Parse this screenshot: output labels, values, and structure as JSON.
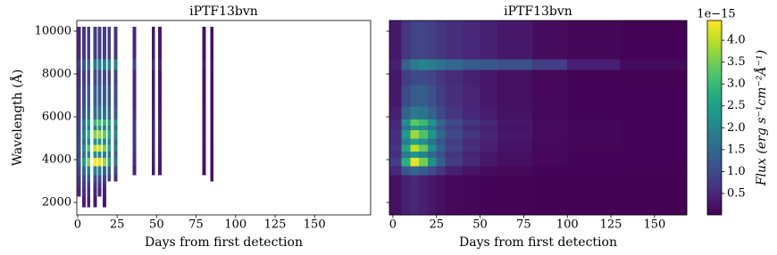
{
  "chart_data": [
    {
      "type": "spectra",
      "title": "iPTF13bvn",
      "x_label": "Days from first detection",
      "y_label": "Wavelength (Å)",
      "xlim": [
        -0.5,
        185.5
      ],
      "ylim": [
        1420,
        10500
      ],
      "xticks": [
        0,
        25,
        50,
        75,
        100,
        125,
        150
      ],
      "yticks": [
        2000,
        4000,
        6000,
        8000,
        10000
      ],
      "colormap": "viridis",
      "clim": [
        0.01,
        4.45
      ],
      "y_edges": [
        1800,
        2300,
        2700,
        3000,
        3300,
        3700,
        4100,
        4400,
        4700,
        5000,
        5400,
        5600,
        5900,
        6500,
        7500,
        8200,
        8700,
        10200
      ],
      "spectra": [
        {
          "x": 1,
          "values": [
            null,
            0.5,
            0.6,
            0.7,
            0.9,
            1.2,
            1.0,
            1.1,
            1.0,
            1.0,
            0.9,
            0.9,
            0.8,
            0.7,
            0.6,
            0.8,
            0.5
          ]
        },
        {
          "x": 4,
          "values": [
            0.4,
            0.6,
            0.8,
            1.0,
            1.5,
            2.5,
            1.6,
            2.2,
            1.6,
            2.0,
            1.5,
            1.8,
            1.2,
            1.0,
            0.8,
            1.2,
            0.7
          ]
        },
        {
          "x": 7,
          "values": [
            0.4,
            0.6,
            0.8,
            1.2,
            1.8,
            3.6,
            2.0,
            3.2,
            2.0,
            2.8,
            1.8,
            2.4,
            1.5,
            1.2,
            0.9,
            1.5,
            0.8
          ]
        },
        {
          "x": 11,
          "values": [
            0.3,
            0.5,
            0.7,
            1.1,
            1.9,
            4.4,
            2.2,
            4.0,
            2.3,
            3.6,
            2.0,
            3.0,
            1.6,
            1.3,
            1.0,
            1.8,
            0.8
          ]
        },
        {
          "x": 14,
          "values": [
            null,
            0.5,
            0.7,
            1.0,
            1.8,
            4.3,
            2.1,
            4.2,
            2.3,
            3.8,
            2.1,
            3.2,
            1.7,
            1.3,
            1.0,
            1.9,
            0.8
          ]
        },
        {
          "x": 17,
          "values": [
            0.3,
            0.4,
            0.6,
            0.9,
            1.5,
            3.8,
            1.9,
            3.6,
            2.1,
            3.4,
            2.0,
            3.0,
            1.6,
            1.3,
            1.0,
            2.0,
            0.8
          ]
        },
        {
          "x": 20,
          "values": [
            null,
            null,
            null,
            0.8,
            1.3,
            2.6,
            1.7,
            2.6,
            1.9,
            2.6,
            1.8,
            2.6,
            1.5,
            1.2,
            0.9,
            2.0,
            0.8
          ]
        },
        {
          "x": 24,
          "values": [
            null,
            null,
            null,
            0.6,
            1.0,
            1.8,
            1.4,
            1.9,
            1.6,
            2.1,
            1.6,
            2.2,
            1.3,
            1.1,
            0.9,
            2.0,
            0.7
          ]
        },
        {
          "x": 36,
          "values": [
            null,
            null,
            null,
            null,
            0.4,
            0.6,
            0.6,
            0.7,
            0.7,
            0.8,
            0.7,
            0.8,
            0.6,
            0.5,
            0.5,
            0.9,
            0.5
          ]
        },
        {
          "x": 48,
          "values": [
            null,
            null,
            null,
            null,
            0.3,
            0.4,
            0.4,
            0.45,
            0.45,
            0.5,
            0.45,
            0.5,
            0.4,
            0.35,
            0.3,
            0.6,
            0.3
          ]
        },
        {
          "x": 52,
          "values": [
            null,
            null,
            null,
            null,
            0.3,
            0.35,
            0.35,
            0.4,
            0.4,
            0.45,
            0.4,
            0.45,
            0.35,
            0.3,
            0.3,
            0.5,
            0.3
          ]
        },
        {
          "x": 80,
          "values": [
            null,
            null,
            null,
            null,
            0.2,
            0.25,
            0.25,
            0.25,
            0.25,
            0.3,
            0.25,
            0.3,
            0.25,
            0.2,
            0.2,
            0.3,
            0.2
          ]
        },
        {
          "x": 85,
          "values": [
            null,
            null,
            null,
            0.15,
            0.2,
            0.2,
            0.2,
            0.2,
            0.2,
            0.25,
            0.2,
            0.25,
            0.2,
            0.18,
            0.18,
            0.25,
            0.18
          ]
        }
      ]
    },
    {
      "type": "heatmap",
      "title": "iPTF13bvn",
      "x_label": "Days from first detection",
      "xlim": [
        -2,
        168.5
      ],
      "ylim": [
        1420,
        10500
      ],
      "xticks": [
        0,
        25,
        50,
        75,
        100,
        125,
        150
      ],
      "yticks": [
        2000,
        4000,
        6000,
        8000,
        10000
      ],
      "ytick_labels": false,
      "colormap": "viridis",
      "clim": [
        0.01,
        4.45
      ],
      "x_edges": [
        -2,
        5,
        10,
        15,
        20,
        25,
        30,
        40,
        50,
        60,
        80,
        100,
        130,
        168.5
      ],
      "y_edges": [
        1420,
        3300,
        3700,
        4100,
        4400,
        4700,
        5000,
        5400,
        5600,
        5900,
        6500,
        7500,
        8200,
        8700,
        10500
      ],
      "values": [
        [
          0.2,
          0.4,
          0.5,
          0.4,
          0.3,
          0.2,
          0.1,
          0.08,
          0.05,
          0.03,
          0.02,
          0.02,
          0.02
        ],
        [
          0.5,
          1.2,
          1.5,
          1.3,
          1.0,
          0.7,
          0.4,
          0.25,
          0.15,
          0.1,
          0.05,
          0.04,
          0.03
        ],
        [
          0.8,
          2.8,
          4.3,
          3.5,
          2.2,
          1.4,
          0.8,
          0.5,
          0.3,
          0.2,
          0.1,
          0.06,
          0.04
        ],
        [
          0.6,
          1.8,
          2.3,
          2.0,
          1.5,
          1.1,
          0.7,
          0.45,
          0.3,
          0.2,
          0.1,
          0.06,
          0.04
        ],
        [
          0.7,
          2.6,
          4.0,
          3.4,
          2.2,
          1.4,
          0.9,
          0.6,
          0.4,
          0.25,
          0.12,
          0.07,
          0.05
        ],
        [
          0.6,
          1.9,
          2.5,
          2.2,
          1.7,
          1.2,
          0.8,
          0.55,
          0.4,
          0.25,
          0.12,
          0.07,
          0.05
        ],
        [
          0.6,
          2.4,
          3.8,
          3.2,
          2.3,
          1.5,
          1.0,
          0.7,
          0.45,
          0.3,
          0.15,
          0.08,
          0.05
        ],
        [
          0.5,
          1.7,
          2.3,
          2.1,
          1.7,
          1.2,
          0.8,
          0.55,
          0.4,
          0.25,
          0.12,
          0.07,
          0.05
        ],
        [
          0.5,
          2.2,
          3.3,
          3.0,
          2.3,
          1.5,
          1.0,
          0.7,
          0.5,
          0.3,
          0.15,
          0.08,
          0.05
        ],
        [
          0.4,
          1.4,
          1.8,
          1.7,
          1.4,
          1.0,
          0.7,
          0.5,
          0.35,
          0.22,
          0.1,
          0.06,
          0.04
        ],
        [
          0.3,
          1.0,
          1.3,
          1.3,
          1.1,
          0.8,
          0.6,
          0.45,
          0.3,
          0.2,
          0.1,
          0.06,
          0.04
        ],
        [
          0.3,
          0.8,
          1.0,
          1.0,
          0.9,
          0.7,
          0.55,
          0.4,
          0.3,
          0.2,
          0.1,
          0.05,
          0.03
        ],
        [
          0.4,
          1.4,
          1.8,
          2.0,
          1.9,
          1.7,
          1.5,
          1.3,
          1.2,
          1.1,
          0.8,
          0.4,
          0.15
        ],
        [
          0.3,
          0.7,
          0.9,
          0.9,
          0.8,
          0.7,
          0.6,
          0.5,
          0.4,
          0.3,
          0.15,
          0.08,
          0.04
        ]
      ],
      "colorbar": {
        "label": "Flux (erg s⁻¹cm⁻²Å⁻¹)",
        "offset_label": "1e−15",
        "ticks": [
          0.5,
          {
            "value": 1,
            "label": "1.0"
          },
          1.5,
          {
            "value": 2,
            "label": "2.0"
          },
          2.5,
          {
            "value": 3,
            "label": "3.0"
          },
          3.5,
          {
            "value": 4,
            "label": "4.0"
          }
        ]
      }
    }
  ]
}
